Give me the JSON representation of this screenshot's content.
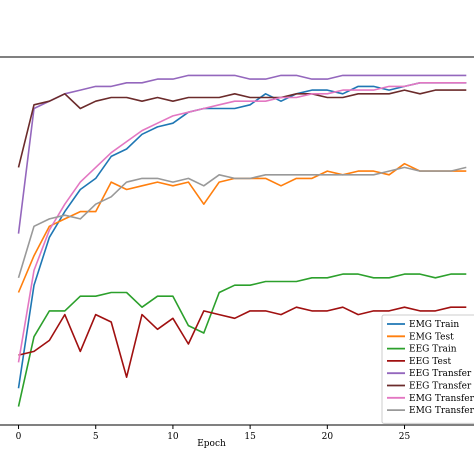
{
  "chart_data": {
    "type": "line",
    "title": "",
    "xlabel": "Epoch",
    "ylabel": "",
    "xlim": [
      -1.2,
      29.5
    ],
    "ylim": [
      0,
      100
    ],
    "xticks": [
      0,
      5,
      10,
      15,
      20,
      25
    ],
    "grid": false,
    "legend_position": "bottom-right",
    "x": [
      0,
      1,
      2,
      3,
      4,
      5,
      6,
      7,
      8,
      9,
      10,
      11,
      12,
      13,
      14,
      15,
      16,
      17,
      18,
      19,
      20,
      21,
      22,
      23,
      24,
      25,
      26,
      27,
      28,
      29
    ],
    "series": [
      {
        "name": "EMG Train",
        "color": "#1f77b4",
        "values": [
          10,
          38,
          51,
          58,
          64,
          67,
          73,
          75,
          79,
          81,
          82,
          85,
          86,
          86,
          86,
          87,
          90,
          88,
          90,
          91,
          91,
          90,
          92,
          92,
          91,
          92,
          93,
          93,
          93,
          93
        ]
      },
      {
        "name": "EMG Test",
        "color": "#ff7f0e",
        "values": [
          36,
          46,
          54,
          56,
          58,
          58,
          66,
          64,
          65,
          66,
          65,
          66,
          60,
          66,
          67,
          67,
          67,
          65,
          67,
          67,
          69,
          68,
          69,
          69,
          68,
          71,
          69,
          69,
          69,
          69
        ]
      },
      {
        "name": "EEG Train",
        "color": "#2ca02c",
        "values": [
          5,
          24,
          31,
          31,
          35,
          35,
          36,
          36,
          32,
          35,
          35,
          27,
          25,
          36,
          38,
          38,
          39,
          39,
          39,
          40,
          40,
          41,
          41,
          40,
          40,
          41,
          41,
          40,
          41,
          41
        ]
      },
      {
        "name": "EEG Test",
        "color": "#a01010",
        "values": [
          19,
          20,
          23,
          30,
          20,
          30,
          28,
          13,
          30,
          26,
          29,
          22,
          31,
          30,
          29,
          31,
          31,
          30,
          32,
          31,
          31,
          32,
          30,
          31,
          31,
          32,
          31,
          31,
          32,
          32
        ]
      },
      {
        "name": "EEG Transfer Train",
        "color": "#9467bd",
        "values": [
          52,
          86,
          88,
          90,
          91,
          92,
          92,
          93,
          93,
          94,
          94,
          95,
          95,
          95,
          95,
          94,
          94,
          95,
          95,
          94,
          94,
          95,
          95,
          95,
          95,
          95,
          95,
          95,
          95,
          95
        ]
      },
      {
        "name": "EEG Transfer Test",
        "color": "#6b2b2b",
        "values": [
          70,
          87,
          88,
          90,
          86,
          88,
          89,
          89,
          88,
          89,
          88,
          89,
          89,
          89,
          90,
          89,
          89,
          89,
          90,
          90,
          89,
          89,
          90,
          90,
          90,
          91,
          90,
          91,
          91,
          91
        ]
      },
      {
        "name": "EMG Transfer Train",
        "color": "#e377c2",
        "values": [
          17,
          42,
          53,
          60,
          66,
          70,
          74,
          77,
          80,
          82,
          84,
          85,
          86,
          87,
          88,
          88,
          88,
          89,
          89,
          90,
          90,
          91,
          91,
          91,
          92,
          92,
          93,
          93,
          93,
          93
        ]
      },
      {
        "name": "EMG Transfer Test",
        "color": "#999999",
        "values": [
          40,
          54,
          56,
          57,
          56,
          60,
          62,
          66,
          67,
          67,
          66,
          67,
          65,
          68,
          67,
          67,
          68,
          68,
          68,
          68,
          68,
          68,
          68,
          68,
          69,
          70,
          69,
          69,
          69,
          70
        ]
      }
    ]
  }
}
